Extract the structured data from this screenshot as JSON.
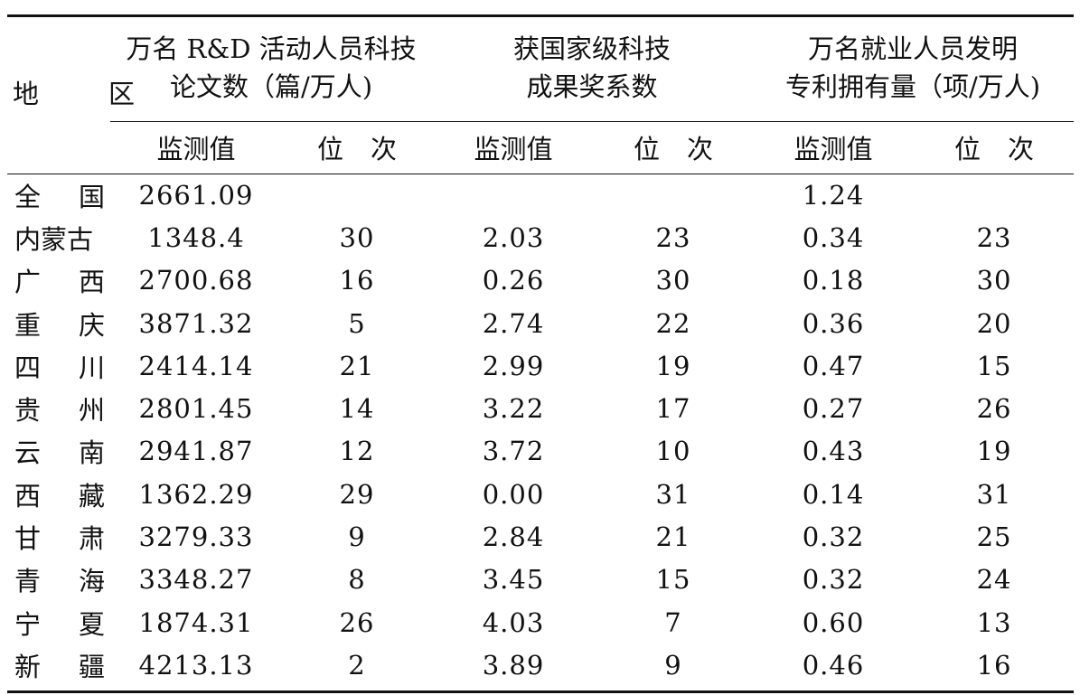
{
  "headers": {
    "region": "地　区",
    "group1_line1": "万名 R&D 活动人员科技",
    "group1_line2": "论文数（篇/万人)",
    "group2_line1": "获国家级科技",
    "group2_line2": "成果奖系数",
    "group3_line1": "万名就业人员发明",
    "group3_line2": "专利拥有量（项/万人)",
    "value_label": "监测值",
    "rank_label": "位次"
  },
  "rows": [
    {
      "region": "全国",
      "v1": "2661.09",
      "r1": "",
      "v2": "",
      "r2": "",
      "v3": "1.24",
      "r3": ""
    },
    {
      "region": "内蒙古",
      "v1": "1348.4",
      "r1": "30",
      "v2": "2.03",
      "r2": "23",
      "v3": "0.34",
      "r3": "23"
    },
    {
      "region": "广西",
      "v1": "2700.68",
      "r1": "16",
      "v2": "0.26",
      "r2": "30",
      "v3": "0.18",
      "r3": "30"
    },
    {
      "region": "重庆",
      "v1": "3871.32",
      "r1": "5",
      "v2": "2.74",
      "r2": "22",
      "v3": "0.36",
      "r3": "20"
    },
    {
      "region": "四川",
      "v1": "2414.14",
      "r1": "21",
      "v2": "2.99",
      "r2": "19",
      "v3": "0.47",
      "r3": "15"
    },
    {
      "region": "贵州",
      "v1": "2801.45",
      "r1": "14",
      "v2": "3.22",
      "r2": "17",
      "v3": "0.27",
      "r3": "26"
    },
    {
      "region": "云南",
      "v1": "2941.87",
      "r1": "12",
      "v2": "3.72",
      "r2": "10",
      "v3": "0.43",
      "r3": "19"
    },
    {
      "region": "西藏",
      "v1": "1362.29",
      "r1": "29",
      "v2": "0.00",
      "r2": "31",
      "v3": "0.14",
      "r3": "31"
    },
    {
      "region": "甘肃",
      "v1": "3279.33",
      "r1": "9",
      "v2": "2.84",
      "r2": "21",
      "v3": "0.32",
      "r3": "25"
    },
    {
      "region": "青海",
      "v1": "3348.27",
      "r1": "8",
      "v2": "3.45",
      "r2": "15",
      "v3": "0.32",
      "r3": "24"
    },
    {
      "region": "宁夏",
      "v1": "1874.31",
      "r1": "26",
      "v2": "4.03",
      "r2": "7",
      "v3": "0.60",
      "r3": "13"
    },
    {
      "region": "新疆",
      "v1": "4213.13",
      "r1": "2",
      "v2": "3.89",
      "r2": "9",
      "v3": "0.46",
      "r3": "16"
    }
  ]
}
